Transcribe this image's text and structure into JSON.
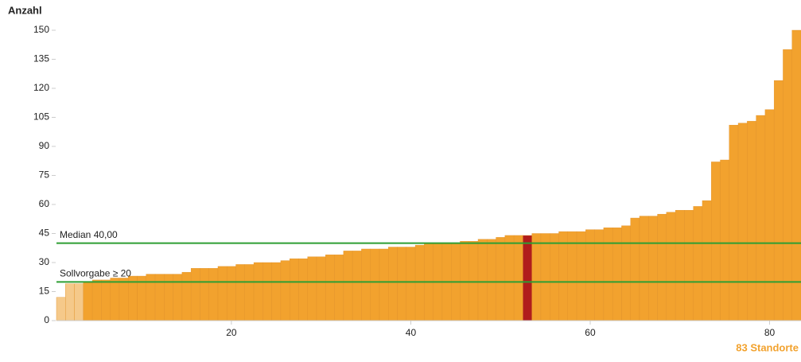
{
  "chart_data": {
    "type": "bar",
    "ylabel": "Anzahl",
    "xlabel": "83  Standorte",
    "x": [
      1,
      2,
      3,
      4,
      5,
      6,
      7,
      8,
      9,
      10,
      11,
      12,
      13,
      14,
      15,
      16,
      17,
      18,
      19,
      20,
      21,
      22,
      23,
      24,
      25,
      26,
      27,
      28,
      29,
      30,
      31,
      32,
      33,
      34,
      35,
      36,
      37,
      38,
      39,
      40,
      41,
      42,
      43,
      44,
      45,
      46,
      47,
      48,
      49,
      50,
      51,
      52,
      53,
      54,
      55,
      56,
      57,
      58,
      59,
      60,
      61,
      62,
      63,
      64,
      65,
      66,
      67,
      68,
      69,
      70,
      71,
      72,
      73,
      74,
      75,
      76,
      77,
      78,
      79,
      80,
      81,
      82,
      83
    ],
    "values": [
      12,
      19,
      19,
      20,
      21,
      21,
      22,
      22,
      23,
      23,
      24,
      24,
      24,
      24,
      25,
      27,
      27,
      27,
      28,
      28,
      29,
      29,
      30,
      30,
      30,
      31,
      32,
      32,
      33,
      33,
      34,
      34,
      36,
      36,
      37,
      37,
      37,
      38,
      38,
      38,
      39,
      40,
      40,
      40,
      40,
      41,
      41,
      42,
      42,
      43,
      44,
      44,
      44,
      45,
      45,
      45,
      46,
      46,
      46,
      47,
      47,
      48,
      48,
      49,
      53,
      54,
      54,
      55,
      56,
      57,
      57,
      59,
      62,
      82,
      83,
      101,
      102,
      103,
      106,
      109,
      124,
      140,
      150
    ],
    "colors": [
      "#f5c98a",
      "#f5c98a",
      "#f5c98a",
      "#f2a22e",
      "#f2a22e",
      "#f2a22e",
      "#f2a22e",
      "#f2a22e",
      "#f2a22e",
      "#f2a22e",
      "#f2a22e",
      "#f2a22e",
      "#f2a22e",
      "#f2a22e",
      "#f2a22e",
      "#f2a22e",
      "#f2a22e",
      "#f2a22e",
      "#f2a22e",
      "#f2a22e",
      "#f2a22e",
      "#f2a22e",
      "#f2a22e",
      "#f2a22e",
      "#f2a22e",
      "#f2a22e",
      "#f2a22e",
      "#f2a22e",
      "#f2a22e",
      "#f2a22e",
      "#f2a22e",
      "#f2a22e",
      "#f2a22e",
      "#f2a22e",
      "#f2a22e",
      "#f2a22e",
      "#f2a22e",
      "#f2a22e",
      "#f2a22e",
      "#f2a22e",
      "#f2a22e",
      "#f2a22e",
      "#f2a22e",
      "#f2a22e",
      "#f2a22e",
      "#f2a22e",
      "#f2a22e",
      "#f2a22e",
      "#f2a22e",
      "#f2a22e",
      "#f2a22e",
      "#f2a22e",
      "#b01c1c",
      "#f2a22e",
      "#f2a22e",
      "#f2a22e",
      "#f2a22e",
      "#f2a22e",
      "#f2a22e",
      "#f2a22e",
      "#f2a22e",
      "#f2a22e",
      "#f2a22e",
      "#f2a22e",
      "#f2a22e",
      "#f2a22e",
      "#f2a22e",
      "#f2a22e",
      "#f2a22e",
      "#f2a22e",
      "#f2a22e",
      "#f2a22e",
      "#f2a22e",
      "#f2a22e",
      "#f2a22e",
      "#f2a22e",
      "#f2a22e",
      "#f2a22e",
      "#f2a22e",
      "#f2a22e",
      "#f2a22e",
      "#f2a22e",
      "#f2a22e"
    ],
    "xlim": [
      0.5,
      83.5
    ],
    "xticks": [
      20,
      40,
      60,
      80
    ],
    "ylim": [
      0,
      150
    ],
    "yticks": [
      0,
      15,
      30,
      45,
      60,
      75,
      90,
      105,
      120,
      135,
      150
    ],
    "reference_lines": [
      {
        "label": "Median 40,00",
        "value": 40,
        "color": "#2e9e33"
      },
      {
        "label": "Sollvorgabe ≥ 20",
        "value": 20,
        "color": "#2e9e33"
      }
    ]
  }
}
